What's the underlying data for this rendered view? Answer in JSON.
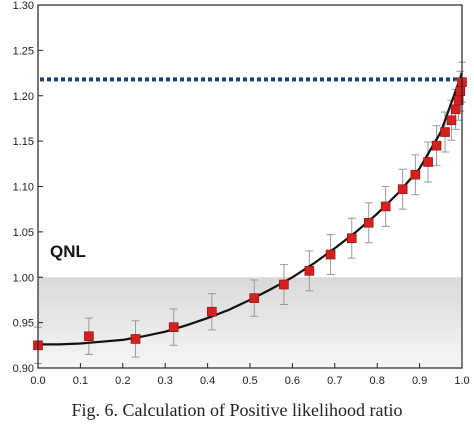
{
  "caption": "Fig. 6.   Calculation of Positive likelihood ratio",
  "chart_data": {
    "type": "scatter",
    "xlim": [
      0.0,
      1.0
    ],
    "ylim": [
      0.9,
      1.3
    ],
    "x_ticks": [
      "0.0",
      "0.1",
      "0.2",
      "0.3",
      "0.4",
      "0.5",
      "0.6",
      "0.7",
      "0.8",
      "0.9",
      "1.0"
    ],
    "y_ticks": [
      "0.90",
      "0.95",
      "1.00",
      "1.05",
      "1.10",
      "1.15",
      "1.20",
      "1.25",
      "1.30"
    ],
    "xlabel": "",
    "ylabel": "",
    "region_label": "QNL",
    "shaded_region_y": [
      0.9,
      1.0
    ],
    "dashed_line_y": 1.218,
    "grid": false,
    "colors": {
      "marker": "#d42020",
      "curve": "#111111",
      "dashed": "#1f3f7a",
      "errorbar": "#999999",
      "shade_top": "#d9d9d9",
      "shade_bottom": "#f6f6f6"
    },
    "points": [
      {
        "x": 0.0,
        "y": 0.925,
        "err": 0.02
      },
      {
        "x": 0.12,
        "y": 0.935,
        "err": 0.02
      },
      {
        "x": 0.23,
        "y": 0.932,
        "err": 0.02
      },
      {
        "x": 0.32,
        "y": 0.945,
        "err": 0.02
      },
      {
        "x": 0.41,
        "y": 0.962,
        "err": 0.02
      },
      {
        "x": 0.51,
        "y": 0.977,
        "err": 0.02
      },
      {
        "x": 0.58,
        "y": 0.992,
        "err": 0.022
      },
      {
        "x": 0.64,
        "y": 1.007,
        "err": 0.022
      },
      {
        "x": 0.69,
        "y": 1.025,
        "err": 0.022
      },
      {
        "x": 0.74,
        "y": 1.043,
        "err": 0.022
      },
      {
        "x": 0.78,
        "y": 1.06,
        "err": 0.022
      },
      {
        "x": 0.82,
        "y": 1.078,
        "err": 0.022
      },
      {
        "x": 0.86,
        "y": 1.097,
        "err": 0.022
      },
      {
        "x": 0.89,
        "y": 1.113,
        "err": 0.022
      },
      {
        "x": 0.92,
        "y": 1.127,
        "err": 0.022
      },
      {
        "x": 0.94,
        "y": 1.145,
        "err": 0.022
      },
      {
        "x": 0.96,
        "y": 1.16,
        "err": 0.022
      },
      {
        "x": 0.975,
        "y": 1.173,
        "err": 0.022
      },
      {
        "x": 0.985,
        "y": 1.185,
        "err": 0.022
      },
      {
        "x": 0.992,
        "y": 1.195,
        "err": 0.022
      },
      {
        "x": 0.996,
        "y": 1.205,
        "err": 0.022
      },
      {
        "x": 1.0,
        "y": 1.215,
        "err": 0.022
      }
    ],
    "fit_curve": {
      "x": [
        0.0,
        0.05,
        0.1,
        0.15,
        0.2,
        0.25,
        0.3,
        0.35,
        0.4,
        0.45,
        0.5,
        0.55,
        0.6,
        0.65,
        0.7,
        0.75,
        0.8,
        0.85,
        0.9,
        0.95,
        1.0
      ],
      "y": [
        0.926,
        0.926,
        0.927,
        0.929,
        0.931,
        0.935,
        0.94,
        0.947,
        0.955,
        0.964,
        0.975,
        0.987,
        1.0,
        1.015,
        1.032,
        1.05,
        1.07,
        1.093,
        1.12,
        1.16,
        1.225
      ]
    }
  }
}
